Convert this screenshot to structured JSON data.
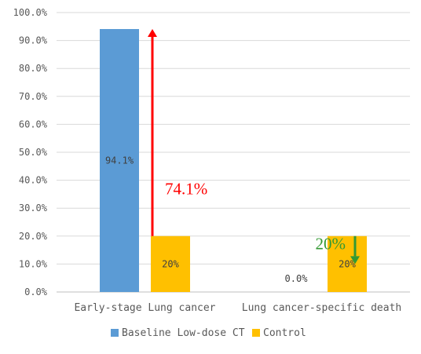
{
  "chart_data": {
    "type": "bar",
    "categories": [
      "Early-stage Lung cancer",
      "Lung cancer-specific death"
    ],
    "series": [
      {
        "name": "Baseline Low-dose CT",
        "values": [
          94.1,
          0.0
        ],
        "labels": [
          "94.1%",
          "0.0%"
        ],
        "color": "#5B9BD5"
      },
      {
        "name": "Control",
        "values": [
          20,
          20
        ],
        "labels": [
          "20%",
          "20%"
        ],
        "color": "#FFC000"
      }
    ],
    "yticks": [
      "0.0%",
      "10.0%",
      "20.0%",
      "30.0%",
      "40.0%",
      "50.0%",
      "60.0%",
      "70.0%",
      "80.0%",
      "90.0%",
      "100.0%"
    ],
    "ylim": [
      0,
      100
    ],
    "grid": true,
    "legend_position": "bottom",
    "annotations": [
      {
        "text": "74.1%",
        "color": "#FF0000",
        "arrow": "up",
        "from": 20,
        "to": 94.1,
        "category": 0
      },
      {
        "text": "20%",
        "color": "#339933",
        "arrow": "down",
        "from": 20,
        "to": 10,
        "category": 1
      }
    ]
  }
}
